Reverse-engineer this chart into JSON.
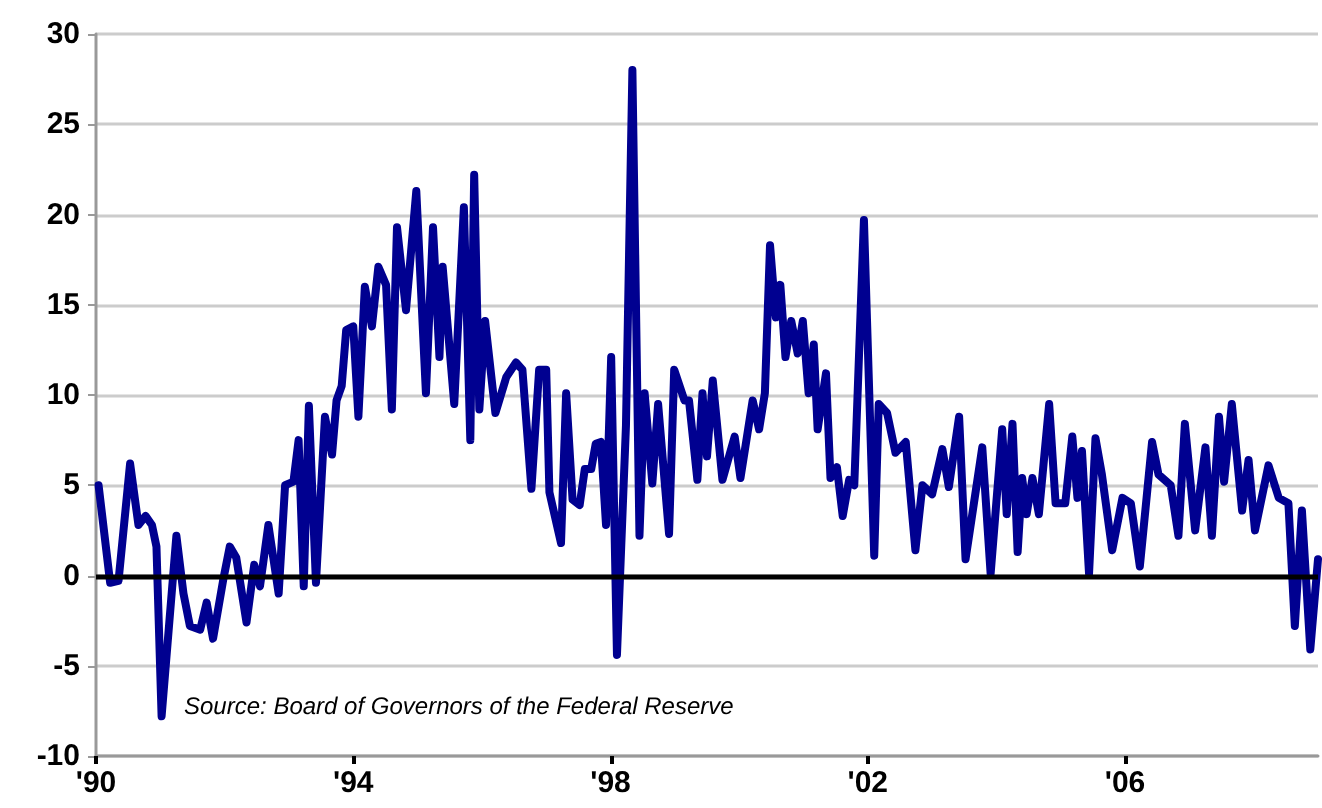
{
  "chart_data": {
    "type": "line",
    "x": [
      1990.04,
      1990.22,
      1990.35,
      1990.53,
      1990.66,
      1990.77,
      1990.87,
      1990.94,
      1991.02,
      1991.25,
      1991.36,
      1991.46,
      1991.62,
      1991.72,
      1991.82,
      1991.98,
      1992.08,
      1992.18,
      1992.34,
      1992.46,
      1992.55,
      1992.68,
      1992.84,
      1992.94,
      1993.07,
      1993.15,
      1993.23,
      1993.31,
      1993.42,
      1993.56,
      1993.67,
      1993.74,
      1993.82,
      1993.89,
      1994.0,
      1994.08,
      1994.18,
      1994.29,
      1994.39,
      1994.51,
      1994.6,
      1994.68,
      1994.82,
      1994.98,
      1995.13,
      1995.24,
      1995.34,
      1995.39,
      1995.57,
      1995.72,
      1995.82,
      1995.88,
      1995.96,
      1996.05,
      1996.21,
      1996.38,
      1996.53,
      1996.63,
      1996.77,
      1996.89,
      1997.0,
      1997.05,
      1997.23,
      1997.31,
      1997.41,
      1997.52,
      1997.6,
      1997.7,
      1997.77,
      1997.85,
      1997.93,
      1998.01,
      1998.1,
      1998.24,
      1998.34,
      1998.45,
      1998.53,
      1998.65,
      1998.74,
      1998.91,
      1998.99,
      1999.15,
      1999.22,
      1999.35,
      1999.43,
      1999.5,
      1999.59,
      1999.74,
      1999.93,
      2000.02,
      2000.21,
      2000.31,
      2000.4,
      2000.48,
      2000.57,
      2000.64,
      2000.72,
      2000.81,
      2000.91,
      2000.99,
      2001.08,
      2001.16,
      2001.22,
      2001.35,
      2001.42,
      2001.52,
      2001.61,
      2001.71,
      2001.79,
      2001.94,
      2002.1,
      2002.17,
      2002.3,
      2002.43,
      2002.59,
      2002.74,
      2002.85,
      2003.0,
      2003.16,
      2003.26,
      2003.42,
      2003.52,
      2003.78,
      2003.91,
      2004.09,
      2004.16,
      2004.25,
      2004.33,
      2004.4,
      2004.47,
      2004.56,
      2004.66,
      2004.82,
      2004.92,
      2005.07,
      2005.18,
      2005.26,
      2005.33,
      2005.44,
      2005.54,
      2005.64,
      2005.8,
      2005.96,
      2006.09,
      2006.23,
      2006.42,
      2006.52,
      2006.71,
      2006.83,
      2006.93,
      2007.09,
      2007.25,
      2007.35,
      2007.46,
      2007.54,
      2007.66,
      2007.82,
      2007.92,
      2008.02,
      2008.23,
      2008.39,
      2008.54,
      2008.64,
      2008.75,
      2008.88,
      2009.0
    ],
    "series": [
      {
        "color": "#000090",
        "values": [
          5.0,
          -0.4,
          -0.3,
          6.2,
          2.8,
          3.3,
          2.8,
          1.6,
          -7.8,
          2.2,
          -1.0,
          -2.8,
          -3.0,
          -1.5,
          -3.5,
          -0.2,
          1.6,
          1.0,
          -2.6,
          0.6,
          -0.6,
          2.8,
          -1.0,
          5.0,
          5.2,
          7.5,
          -0.6,
          9.4,
          -0.4,
          8.8,
          6.7,
          9.7,
          10.5,
          13.6,
          13.8,
          8.8,
          16.0,
          13.8,
          17.1,
          16.1,
          9.2,
          19.3,
          14.7,
          21.3,
          10.1,
          19.3,
          12.1,
          17.1,
          9.5,
          20.4,
          7.5,
          22.2,
          9.2,
          14.1,
          9.0,
          11.0,
          11.8,
          11.4,
          4.8,
          11.4,
          11.4,
          4.6,
          1.8,
          10.1,
          4.2,
          3.9,
          5.9,
          5.9,
          7.3,
          7.4,
          2.8,
          12.1,
          -4.4,
          8.3,
          28.0,
          2.2,
          10.1,
          5.1,
          9.5,
          2.3,
          11.4,
          9.7,
          9.7,
          5.3,
          10.1,
          6.6,
          10.8,
          5.3,
          7.7,
          5.4,
          9.7,
          8.1,
          10.1,
          18.3,
          14.3,
          16.1,
          12.1,
          14.1,
          12.3,
          14.1,
          10.1,
          12.8,
          8.1,
          11.2,
          5.4,
          6.0,
          3.3,
          5.3,
          5.0,
          19.7,
          1.1,
          9.5,
          9.0,
          6.8,
          7.4,
          1.4,
          5.0,
          4.5,
          7.0,
          4.9,
          8.8,
          0.9,
          7.1,
          0.1,
          8.1,
          3.4,
          8.4,
          1.3,
          5.4,
          3.4,
          5.4,
          3.4,
          9.5,
          4.0,
          4.0,
          7.7,
          4.3,
          6.9,
          0.1,
          7.6,
          5.6,
          1.4,
          4.3,
          4.0,
          0.5,
          7.4,
          5.6,
          5.0,
          2.2,
          8.4,
          2.5,
          7.1,
          2.2,
          8.8,
          5.2,
          9.5,
          3.6,
          6.4,
          2.5,
          6.1,
          4.3,
          4.0,
          -2.8,
          3.6,
          -4.1,
          0.9
        ]
      }
    ],
    "xlim": [
      1990,
      2009
    ],
    "xticks": [
      {
        "value": 1990,
        "label": "'90"
      },
      {
        "value": 1994,
        "label": "'94"
      },
      {
        "value": 1998,
        "label": "'98"
      },
      {
        "value": 2002,
        "label": "'02"
      },
      {
        "value": 2006,
        "label": "'06"
      }
    ],
    "ylim": [
      -10,
      30
    ],
    "yticks": [
      -10,
      -5,
      0,
      5,
      10,
      15,
      20,
      25,
      30
    ],
    "grid": "y",
    "marker": "none",
    "line_style": "solid",
    "ref_lines": [
      {
        "axis": "y",
        "value": 0,
        "color": "#000000"
      }
    ],
    "annotations": [
      "Source: Board of Governors of the Federal Reserve"
    ]
  }
}
